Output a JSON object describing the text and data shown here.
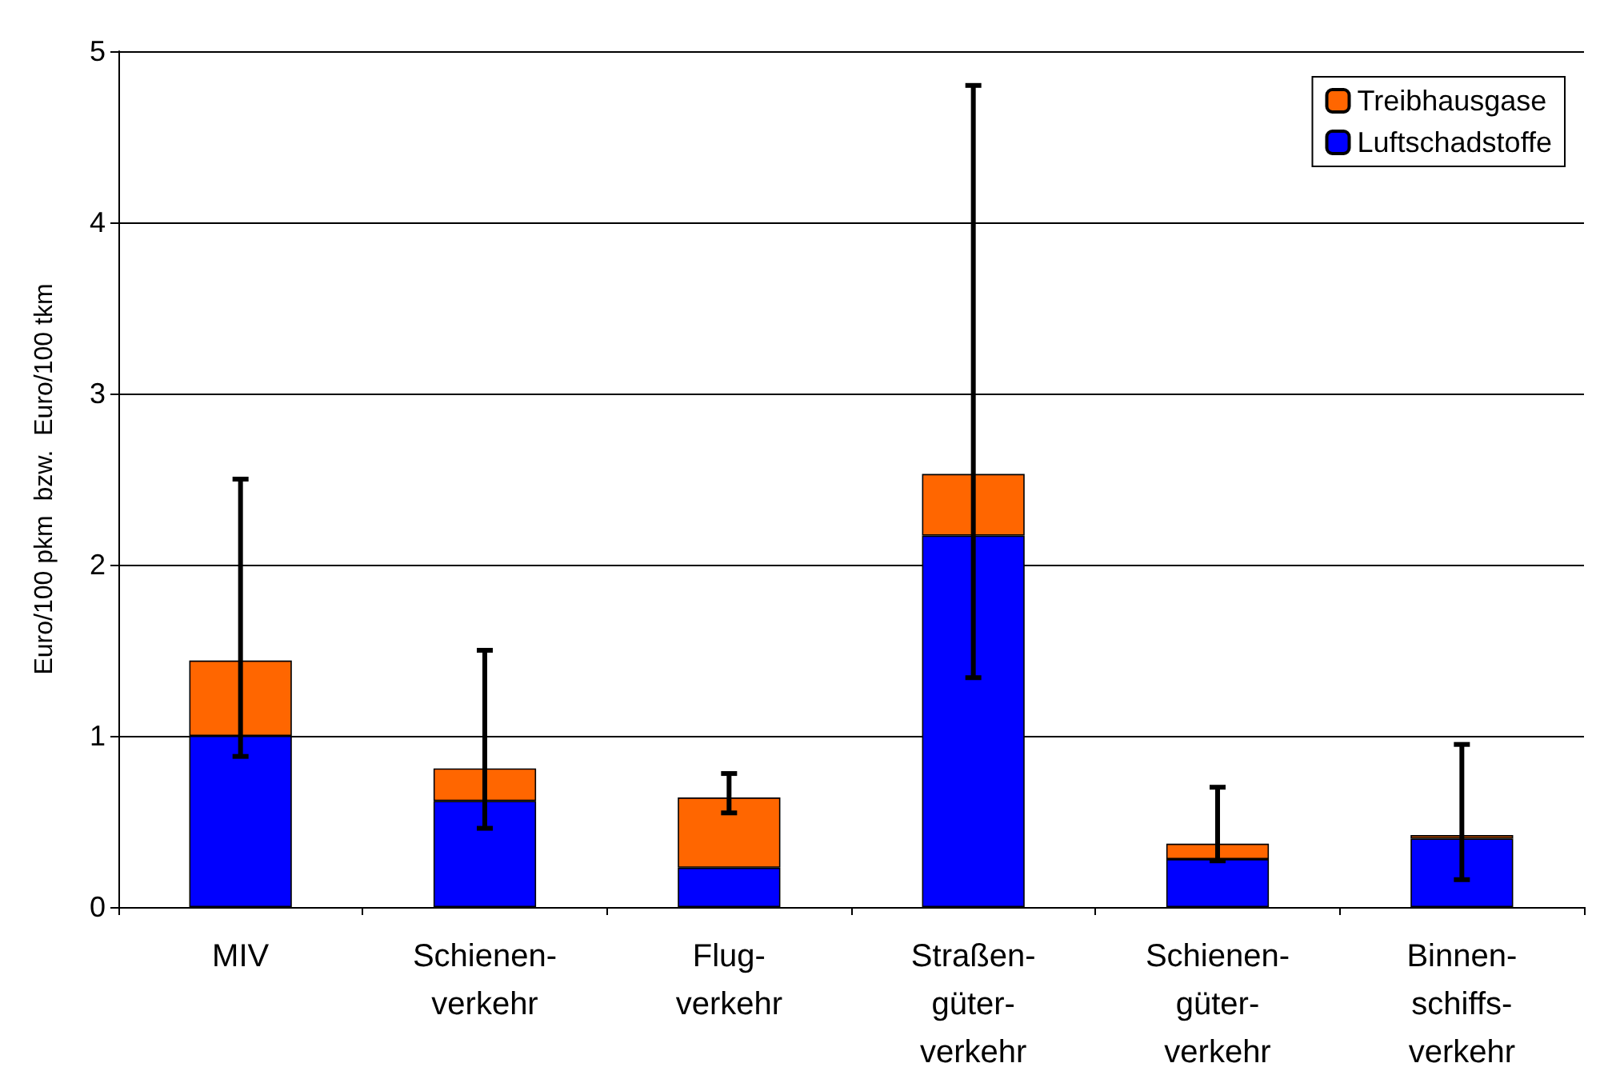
{
  "chart_data": {
    "type": "bar",
    "stacked": true,
    "ylabel": "Euro/100 pkm  bzw.  Euro/100 tkm",
    "categories": [
      "MIV",
      "Schienen-\nverkehr",
      "Flug-\nverkehr",
      "Straßen-\ngüter-\nverkehr",
      "Schienen-\ngüter-\nverkehr",
      "Binnen-\nschiffs-\nverkehr"
    ],
    "series": [
      {
        "name": "Luftschadstoffe",
        "color": "#0000ff",
        "values": [
          1.0,
          0.62,
          0.23,
          2.17,
          0.28,
          0.4
        ]
      },
      {
        "name": "Treibhausgase",
        "color": "#ff6600",
        "values": [
          0.44,
          0.19,
          0.41,
          0.36,
          0.09,
          0.02
        ],
        "errors": [
          [
            0.88,
            2.5
          ],
          [
            0.46,
            1.5
          ],
          [
            0.55,
            0.78
          ],
          [
            1.34,
            4.8
          ],
          [
            0.27,
            0.7
          ],
          [
            0.16,
            0.95
          ]
        ]
      }
    ],
    "ylim": [
      0,
      5
    ],
    "yticks": [
      0,
      1,
      2,
      3,
      4,
      5
    ],
    "grid": "y",
    "legend": "top right"
  }
}
